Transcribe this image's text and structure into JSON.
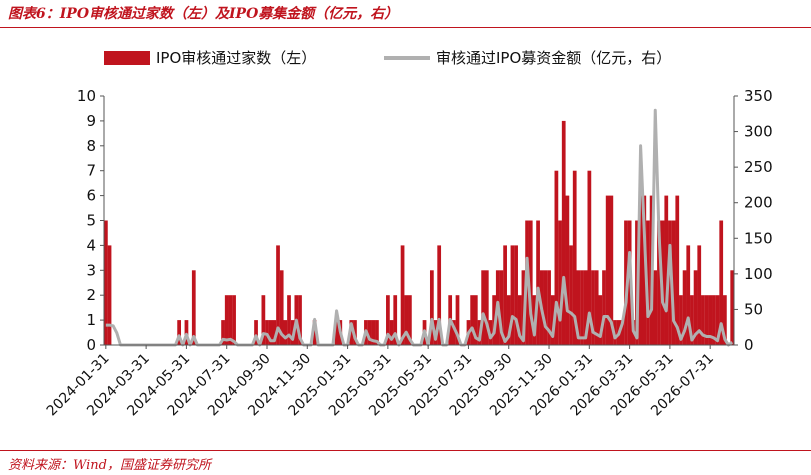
{
  "header": {
    "title": "图表6：IPO审核通过家数（左）及IPO募集金额（亿元，右）"
  },
  "footer": {
    "source": "资料来源：Wind，国盛证券研究所"
  },
  "colors": {
    "bar": "#c0141e",
    "line": "#b0b0b0",
    "accent": "#c0141e"
  },
  "chart_data": {
    "type": "bar+line",
    "series": [
      {
        "name": "IPO审核通过家数（左）",
        "type": "bar",
        "axis": "left",
        "values": [
          5,
          4,
          0,
          0,
          0,
          0,
          0,
          0,
          0,
          0,
          0,
          0,
          0,
          0,
          0,
          0,
          0,
          0,
          0,
          0,
          1,
          0,
          1,
          0,
          3,
          0,
          0,
          0,
          0,
          0,
          0,
          0,
          1,
          2,
          2,
          2,
          0,
          0,
          0,
          0,
          0,
          1,
          0,
          2,
          1,
          1,
          1,
          4,
          3,
          1,
          2,
          1,
          2,
          2,
          0,
          0,
          0,
          1,
          0,
          0,
          0,
          0,
          0,
          1,
          1,
          0,
          0,
          1,
          1,
          0,
          0,
          1,
          1,
          1,
          1,
          0,
          0,
          2,
          1,
          2,
          0,
          4,
          2,
          2,
          0,
          0,
          0,
          1,
          0,
          3,
          1,
          4,
          0,
          0,
          2,
          1,
          2,
          0,
          0,
          1,
          2,
          2,
          1,
          3,
          3,
          1,
          2,
          3,
          3,
          4,
          2,
          4,
          4,
          2,
          3,
          5,
          5,
          2,
          5,
          3,
          3,
          3,
          2,
          7,
          5,
          9,
          6,
          4,
          7,
          3,
          3,
          3,
          7,
          3,
          3,
          2,
          3,
          6,
          6,
          1,
          1,
          1,
          5,
          5,
          1,
          5,
          6,
          6,
          5,
          6,
          3,
          5,
          5,
          6,
          5,
          5,
          6,
          2,
          3,
          4,
          2,
          3,
          4,
          2,
          2,
          2,
          2,
          2,
          5,
          2,
          0,
          3
        ],
        "ylim": [
          0,
          10
        ],
        "yticks": [
          0,
          1,
          2,
          3,
          4,
          5,
          6,
          7,
          8,
          9,
          10
        ]
      },
      {
        "name": "审核通过IPO募资金额（亿元，右）",
        "type": "line",
        "axis": "right",
        "values": [
          28,
          28,
          27,
          17,
          0,
          0,
          0,
          0,
          0,
          0,
          0,
          0,
          0,
          0,
          0,
          0,
          0,
          0,
          0,
          0,
          13,
          0,
          15,
          0,
          12,
          0,
          0,
          0,
          0,
          0,
          0,
          0,
          8,
          7,
          8,
          5,
          0,
          0,
          0,
          0,
          0,
          13,
          0,
          16,
          15,
          6,
          6,
          24,
          15,
          10,
          14,
          8,
          35,
          10,
          0,
          0,
          0,
          36,
          0,
          0,
          0,
          0,
          0,
          48,
          19,
          0,
          0,
          30,
          10,
          0,
          0,
          20,
          8,
          6,
          5,
          0,
          0,
          15,
          8,
          16,
          0,
          10,
          18,
          8,
          0,
          0,
          0,
          20,
          0,
          36,
          8,
          36,
          0,
          0,
          36,
          25,
          14,
          0,
          0,
          17,
          24,
          10,
          7,
          44,
          30,
          10,
          17,
          60,
          18,
          5,
          12,
          40,
          36,
          13,
          6,
          122,
          44,
          14,
          80,
          50,
          26,
          20,
          12,
          60,
          35,
          95,
          48,
          45,
          40,
          10,
          10,
          10,
          45,
          18,
          15,
          12,
          40,
          40,
          32,
          10,
          15,
          30,
          60,
          130,
          20,
          10,
          280,
          160,
          40,
          50,
          330,
          160,
          60,
          48,
          140,
          34,
          25,
          8,
          20,
          38,
          7,
          15,
          20,
          14,
          12,
          12,
          10,
          6,
          30,
          8,
          0,
          4
        ],
        "ylim": [
          0,
          350
        ],
        "yticks": [
          0,
          50,
          100,
          150,
          200,
          250,
          300,
          350
        ]
      }
    ],
    "x_tick_labels": [
      "2024-01-31",
      "2024-03-31",
      "2024-05-31",
      "2024-07-31",
      "2024-09-30",
      "2024-11-30",
      "2025-01-31",
      "2025-03-31",
      "2025-05-31",
      "2025-07-31",
      "2025-09-30",
      "2025-11-30",
      "2026-01-31",
      "2026-03-31",
      "2026-05-31",
      "2026-07-31"
    ],
    "x_tick_positions": [
      0,
      11,
      22,
      33,
      44,
      55,
      66,
      77,
      88,
      99,
      110,
      121,
      132,
      143,
      154,
      165
    ],
    "legend_placement": "top",
    "grid": false
  }
}
